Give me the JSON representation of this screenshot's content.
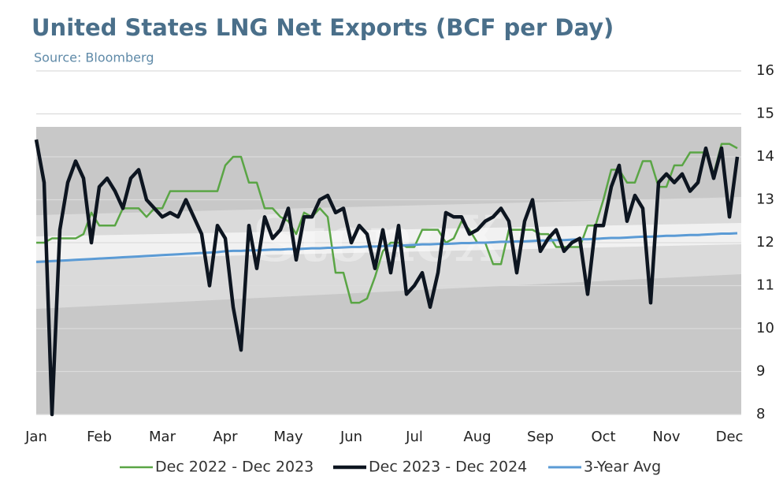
{
  "chart_data": {
    "type": "line",
    "title": "United States LNG Net Exports (BCF per Day)",
    "subtitle": "Source: Bloomberg",
    "watermark": "StoneX",
    "categories": [
      "Jan",
      null,
      null,
      null,
      null,
      null,
      null,
      null,
      "Feb",
      null,
      null,
      null,
      null,
      null,
      null,
      null,
      "Mar",
      null,
      null,
      null,
      null,
      null,
      null,
      null,
      "Apr",
      null,
      null,
      null,
      null,
      null,
      null,
      null,
      "May",
      null,
      null,
      null,
      null,
      null,
      null,
      null,
      "Jun",
      null,
      null,
      null,
      null,
      null,
      null,
      null,
      "Jul",
      null,
      null,
      null,
      null,
      null,
      null,
      null,
      "Aug",
      null,
      null,
      null,
      null,
      null,
      null,
      null,
      "Sep",
      null,
      null,
      null,
      null,
      null,
      null,
      null,
      "Oct",
      null,
      null,
      null,
      null,
      null,
      null,
      null,
      "Nov",
      null,
      null,
      null,
      null,
      null,
      null,
      null,
      "Dec",
      null
    ],
    "ylim": [
      8,
      16
    ],
    "yticks": [
      8,
      9,
      10,
      11,
      12,
      13,
      14,
      15,
      16
    ],
    "grid": true,
    "legend": "bottom",
    "series": [
      {
        "name": "Dec 2022 - Dec 2023",
        "color": "#5aa545",
        "values": [
          12.0,
          12.0,
          12.1,
          12.1,
          12.1,
          12.1,
          12.2,
          12.7,
          12.4,
          12.4,
          12.4,
          12.8,
          12.8,
          12.8,
          12.6,
          12.8,
          12.8,
          13.2,
          13.2,
          13.2,
          13.2,
          13.2,
          13.2,
          13.2,
          13.8,
          14.0,
          14.0,
          13.4,
          13.4,
          12.8,
          12.8,
          12.6,
          12.5,
          12.2,
          12.7,
          12.6,
          12.8,
          12.6,
          11.3,
          11.3,
          10.6,
          10.6,
          10.7,
          11.2,
          11.8,
          12.0,
          12.0,
          11.9,
          11.9,
          12.3,
          12.3,
          12.3,
          12.0,
          12.1,
          12.5,
          12.3,
          12.0,
          12.0,
          11.5,
          11.5,
          12.3,
          12.3,
          12.3,
          12.3,
          12.2,
          12.2,
          11.9,
          11.9,
          11.9,
          11.9,
          12.4,
          12.4,
          13.0,
          13.7,
          13.7,
          13.4,
          13.4,
          13.9,
          13.9,
          13.3,
          13.3,
          13.8,
          13.8,
          14.1,
          14.1,
          14.1,
          13.6,
          14.3,
          14.3,
          14.2
        ]
      },
      {
        "name": "Dec 2023 - Dec 2024",
        "color": "#0d1520",
        "values": [
          14.4,
          13.4,
          8.0,
          12.3,
          13.4,
          13.9,
          13.5,
          12.0,
          13.3,
          13.5,
          13.2,
          12.8,
          13.5,
          13.7,
          13.0,
          12.8,
          12.6,
          12.7,
          12.6,
          13.0,
          12.6,
          12.2,
          11.0,
          12.4,
          12.1,
          10.5,
          9.5,
          12.4,
          11.4,
          12.6,
          12.1,
          12.3,
          12.8,
          11.6,
          12.6,
          12.6,
          13.0,
          13.1,
          12.7,
          12.8,
          12.0,
          12.4,
          12.2,
          11.4,
          12.3,
          11.3,
          12.4,
          10.8,
          11.0,
          11.3,
          10.5,
          11.3,
          12.7,
          12.6,
          12.6,
          12.2,
          12.3,
          12.5,
          12.6,
          12.8,
          12.5,
          11.3,
          12.5,
          13.0,
          11.8,
          12.1,
          12.3,
          11.8,
          12.0,
          12.1,
          10.8,
          12.4,
          12.4,
          13.3,
          13.8,
          12.5,
          13.1,
          12.8,
          10.6,
          13.4,
          13.6,
          13.4,
          13.6,
          13.2,
          13.4,
          14.2,
          13.5,
          14.2,
          12.6,
          14.0
        ]
      },
      {
        "name": "3-Year Avg",
        "color": "#5b9bd5",
        "values": [
          11.55,
          11.56,
          11.57,
          11.58,
          11.59,
          11.6,
          11.61,
          11.62,
          11.63,
          11.64,
          11.65,
          11.66,
          11.67,
          11.68,
          11.69,
          11.7,
          11.71,
          11.72,
          11.73,
          11.74,
          11.75,
          11.76,
          11.77,
          11.78,
          11.8,
          11.81,
          11.81,
          11.82,
          11.82,
          11.83,
          11.84,
          11.84,
          11.85,
          11.85,
          11.86,
          11.87,
          11.87,
          11.88,
          11.88,
          11.89,
          11.9,
          11.9,
          11.91,
          11.91,
          11.92,
          11.93,
          11.93,
          11.94,
          11.95,
          11.96,
          11.96,
          11.97,
          11.97,
          11.98,
          11.99,
          11.99,
          12.0,
          12.0,
          12.01,
          12.02,
          12.02,
          12.03,
          12.03,
          12.04,
          12.05,
          12.05,
          12.06,
          12.06,
          12.07,
          12.08,
          12.08,
          12.09,
          12.1,
          12.11,
          12.11,
          12.12,
          12.13,
          12.14,
          12.14,
          12.15,
          12.16,
          12.16,
          12.17,
          12.18,
          12.18,
          12.19,
          12.2,
          12.21,
          12.21,
          12.22
        ]
      }
    ]
  }
}
